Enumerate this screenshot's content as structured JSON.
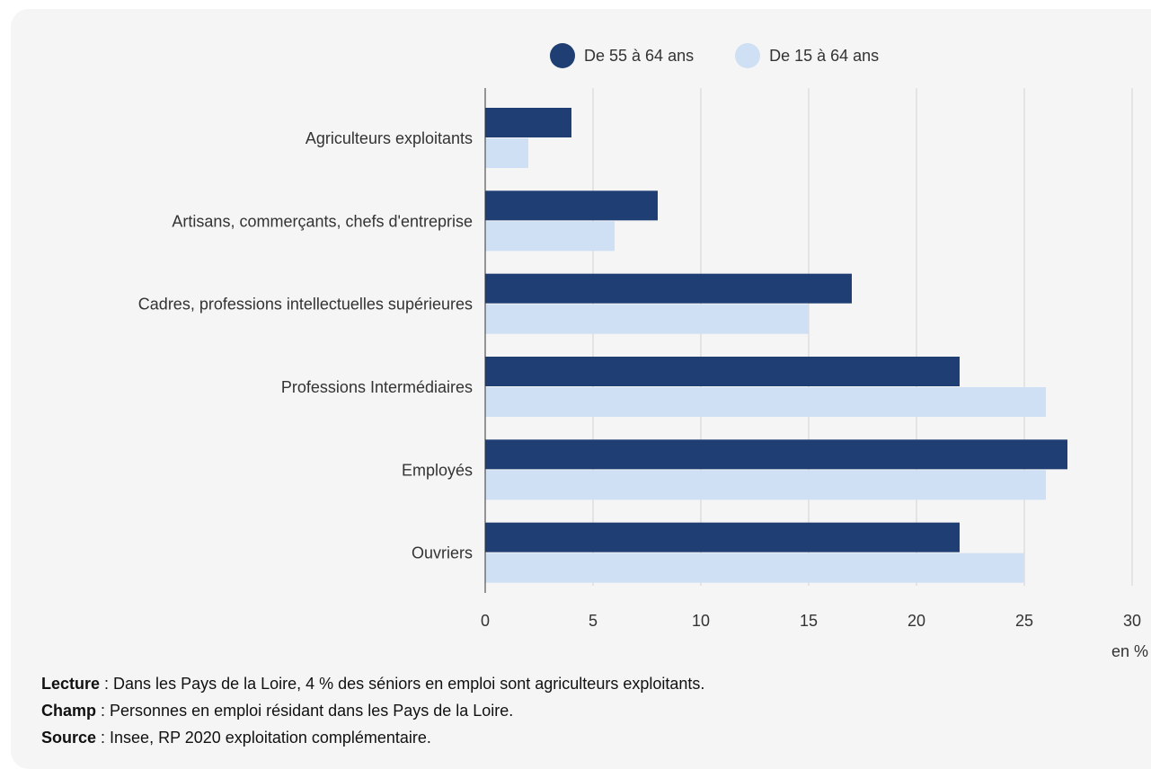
{
  "colors": {
    "senior": "#1f3e73",
    "all": "#cfe0f5",
    "grid": "#d4d4d4",
    "axis": "#333333",
    "background": "#f5f5f5"
  },
  "legend": {
    "senior": "De 55 à 64 ans",
    "all": "De 15 à 64 ans"
  },
  "notes": {
    "lecture_label": "Lecture",
    "lecture_text": " : Dans les Pays de la Loire, 4 % des séniors en emploi sont agriculteurs exploitants.",
    "champ_label": "Champ",
    "champ_text": " : Personnes en emploi résidant dans les Pays de la Loire.",
    "source_label": "Source",
    "source_text": " : Insee, RP 2020 exploitation complémentaire."
  },
  "chart_data": {
    "type": "bar",
    "orientation": "horizontal",
    "categories": [
      "Agriculteurs exploitants",
      "Artisans, commerçants, chefs d'entreprise",
      "Cadres, professions intellectuelles supérieures",
      "Professions Intermédiaires",
      "Employés",
      "Ouvriers"
    ],
    "series": [
      {
        "name": "De 55 à 64 ans",
        "values": [
          4,
          8,
          17,
          22,
          27,
          22
        ]
      },
      {
        "name": "De 15 à 64 ans",
        "values": [
          2,
          6,
          15,
          26,
          26,
          25
        ]
      }
    ],
    "xlim": [
      0,
      30
    ],
    "xticks": [
      "0",
      "5",
      "10",
      "15",
      "20",
      "25",
      "30"
    ],
    "xlabel": "en %",
    "grid": true,
    "legend_position": "top"
  }
}
